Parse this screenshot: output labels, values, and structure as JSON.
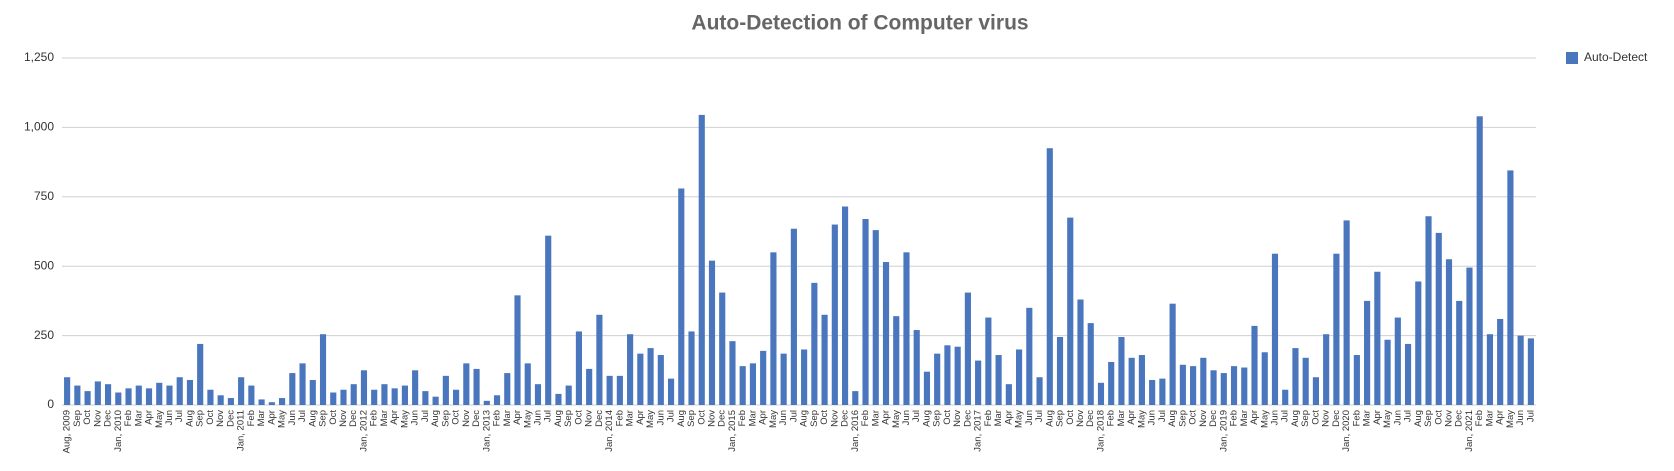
{
  "chart_data": {
    "type": "bar",
    "title": "Auto-Detection of Computer virus",
    "categories": [
      "Aug, 2009",
      "Sep",
      "Oct",
      "Nov",
      "Dec",
      "Jan, 2010",
      "Feb",
      "Mar",
      "Apr",
      "May",
      "Jun",
      "Jul",
      "Aug",
      "Sep",
      "Oct",
      "Nov",
      "Dec",
      "Jan, 2011",
      "Feb",
      "Mar",
      "Apr",
      "May",
      "Jun",
      "Jul",
      "Aug",
      "Sep",
      "Oct",
      "Nov",
      "Dec",
      "Jan, 2012",
      "Feb",
      "Mar",
      "Apr",
      "May",
      "Jun",
      "Jul",
      "Aug",
      "Sep",
      "Oct",
      "Nov",
      "Dec",
      "Jan, 2013",
      "Feb",
      "Mar",
      "Apr",
      "May",
      "Jun",
      "Jul",
      "Aug",
      "Sep",
      "Oct",
      "Nov",
      "Dec",
      "Jan, 2014",
      "Feb",
      "Mar",
      "Apr",
      "May",
      "Jun",
      "Jul",
      "Aug",
      "Sep",
      "Oct",
      "Nov",
      "Dec",
      "Jan, 2015",
      "Feb",
      "Mar",
      "Apr",
      "May",
      "Jun",
      "Jul",
      "Aug",
      "Sep",
      "Oct",
      "Nov",
      "Dec",
      "Jan, 2016",
      "Feb",
      "Mar",
      "Apr",
      "May",
      "Jun",
      "Jul",
      "Aug",
      "Sep",
      "Oct",
      "Nov",
      "Dec",
      "Jan, 2017",
      "Feb",
      "Mar",
      "Apr",
      "May",
      "Jun",
      "Jul",
      "Aug",
      "Sep",
      "Oct",
      "Nov",
      "Dec",
      "Jan, 2018",
      "Feb",
      "Mar",
      "Apr",
      "May",
      "Jun",
      "Jul",
      "Aug",
      "Sep",
      "Oct",
      "Nov",
      "Dec",
      "Jan, 2019",
      "Feb",
      "Mar",
      "Apr",
      "May",
      "Jun",
      "Jul",
      "Aug",
      "Sep",
      "Oct",
      "Nov",
      "Dec",
      "Jan, 2020",
      "Feb",
      "Mar",
      "Apr",
      "May",
      "Jun",
      "Jul",
      "Aug",
      "Sep",
      "Oct",
      "Nov",
      "Dec",
      "Jan, 2021",
      "Feb",
      "Mar",
      "Apr",
      "May",
      "Jun",
      "Jul"
    ],
    "series": [
      {
        "name": "Auto-Detect",
        "color": "#4a76bd",
        "values": [
          100,
          70,
          50,
          85,
          75,
          45,
          60,
          70,
          60,
          80,
          70,
          100,
          90,
          220,
          55,
          35,
          25,
          100,
          70,
          20,
          10,
          25,
          115,
          150,
          90,
          255,
          45,
          55,
          75,
          125,
          55,
          75,
          60,
          70,
          125,
          50,
          30,
          105,
          55,
          150,
          130,
          15,
          35,
          115,
          395,
          150,
          75,
          610,
          40,
          70,
          265,
          130,
          325,
          105,
          105,
          255,
          185,
          205,
          180,
          95,
          780,
          265,
          1045,
          520,
          405,
          230,
          140,
          150,
          195,
          550,
          185,
          635,
          200,
          440,
          325,
          650,
          715,
          50,
          670,
          630,
          515,
          320,
          550,
          270,
          120,
          185,
          215,
          210,
          405,
          160,
          315,
          180,
          75,
          200,
          350,
          100,
          925,
          245,
          675,
          380,
          295,
          80,
          155,
          245,
          170,
          180,
          90,
          95,
          365,
          145,
          140,
          170,
          125,
          115,
          140,
          135,
          285,
          190,
          545,
          55,
          205,
          170,
          100,
          255,
          545,
          665,
          180,
          375,
          480,
          235,
          315,
          220,
          445,
          680,
          620,
          525,
          375,
          495,
          1040,
          255,
          310,
          845,
          250,
          240
        ]
      }
    ],
    "ylim": [
      0,
      1250
    ],
    "yticks": [
      0,
      250,
      500,
      750,
      {
        "value": 1000,
        "label": "1,000"
      },
      {
        "value": 1250,
        "label": "1,250"
      }
    ],
    "grid": true,
    "legend": "top-right"
  }
}
